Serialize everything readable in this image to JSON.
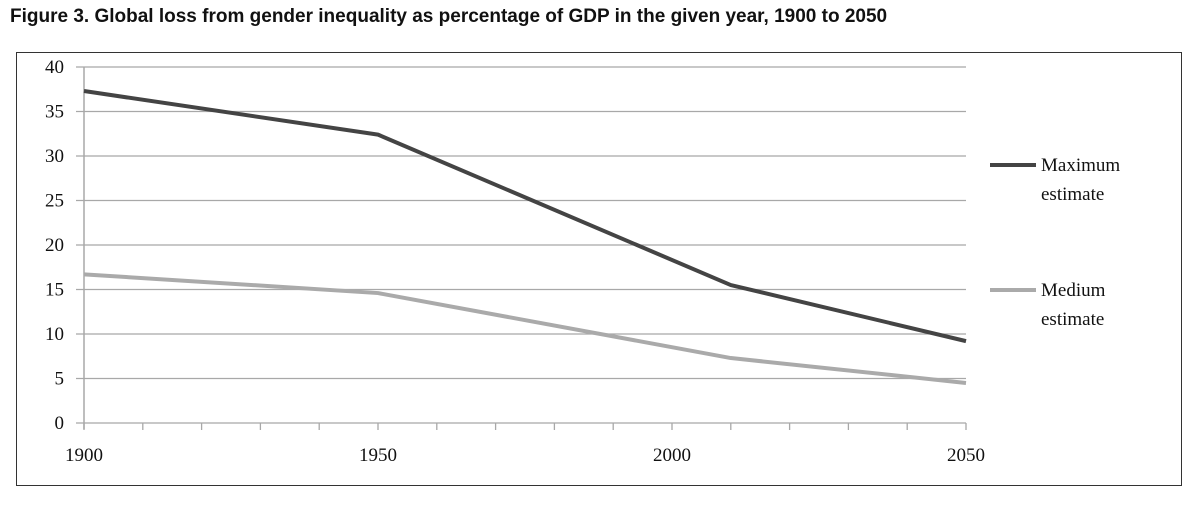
{
  "chart_data": {
    "type": "line",
    "title": "Figure 3. Global loss from gender inequality as percentage of GDP in the given year, 1900 to 2050",
    "xlabel": "",
    "ylabel": "",
    "xlim": [
      1900,
      2050
    ],
    "ylim": [
      0,
      40
    ],
    "x_ticks": [
      "1900",
      "1950",
      "2000",
      "2050"
    ],
    "x_minor_step": 10,
    "y_ticks": [
      "0",
      "5",
      "10",
      "15",
      "20",
      "25",
      "30",
      "35",
      "40"
    ],
    "grid": true,
    "legend_position": "right",
    "series": [
      {
        "name": "Maximum estimate",
        "label_lines": [
          "Maximum",
          "estimate"
        ],
        "color": "#444444",
        "x": [
          1900,
          1950,
          2010,
          2050
        ],
        "values": [
          37.3,
          32.4,
          15.5,
          9.2
        ]
      },
      {
        "name": "Medium estimate",
        "label_lines": [
          "Medium",
          "estimate"
        ],
        "color": "#aaaaaa",
        "x": [
          1900,
          1950,
          2010,
          2050
        ],
        "values": [
          16.7,
          14.6,
          7.3,
          4.5
        ]
      }
    ]
  }
}
